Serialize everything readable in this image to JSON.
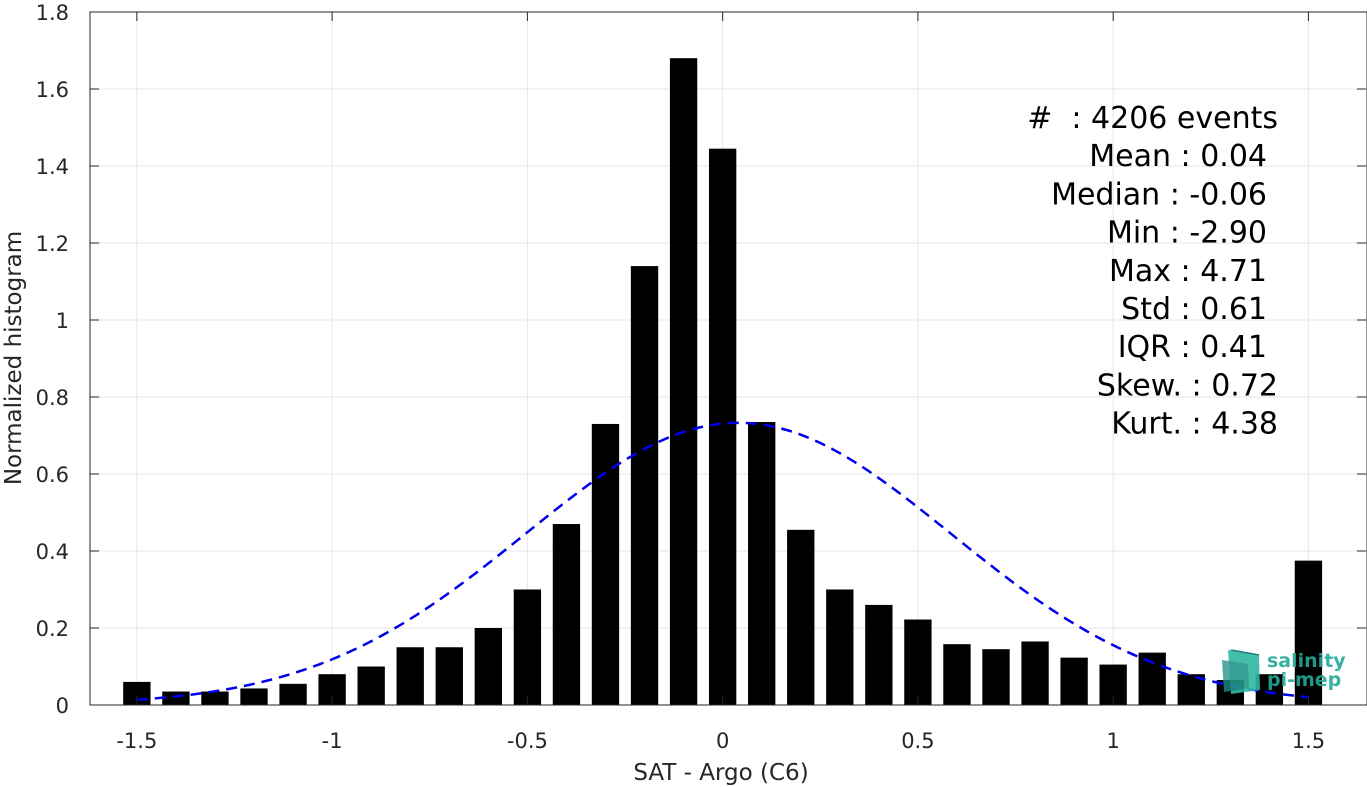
{
  "chart_data": {
    "type": "bar",
    "xlabel": "SAT - Argo (C6)",
    "ylabel": "Normalized histogram",
    "xlim": [
      -1.62,
      1.65
    ],
    "ylim": [
      0,
      1.8
    ],
    "xticks": [
      -1.5,
      -1,
      -0.5,
      0,
      0.5,
      1,
      1.5
    ],
    "xtick_labels": [
      "-1.5",
      "-1",
      "-0.5",
      "0",
      "0.5",
      "1",
      "1.5"
    ],
    "yticks": [
      0,
      0.2,
      0.4,
      0.6,
      0.8,
      1,
      1.2,
      1.4,
      1.6,
      1.8
    ],
    "ytick_labels": [
      "0",
      "0.2",
      "0.4",
      "0.6",
      "0.8",
      "1",
      "1.2",
      "1.4",
      "1.6",
      "1.8"
    ],
    "grid": true,
    "bar_width": 0.07,
    "bar_color": "#000000",
    "bins": [
      {
        "x": -1.5,
        "y": 0.06
      },
      {
        "x": -1.4,
        "y": 0.035
      },
      {
        "x": -1.3,
        "y": 0.035
      },
      {
        "x": -1.2,
        "y": 0.043
      },
      {
        "x": -1.1,
        "y": 0.055
      },
      {
        "x": -1.0,
        "y": 0.08
      },
      {
        "x": -0.9,
        "y": 0.1
      },
      {
        "x": -0.8,
        "y": 0.15
      },
      {
        "x": -0.7,
        "y": 0.15
      },
      {
        "x": -0.6,
        "y": 0.2
      },
      {
        "x": -0.5,
        "y": 0.3
      },
      {
        "x": -0.4,
        "y": 0.47
      },
      {
        "x": -0.3,
        "y": 0.73
      },
      {
        "x": -0.2,
        "y": 1.14
      },
      {
        "x": -0.1,
        "y": 1.68
      },
      {
        "x": 0.0,
        "y": 1.445
      },
      {
        "x": 0.1,
        "y": 0.735
      },
      {
        "x": 0.2,
        "y": 0.455
      },
      {
        "x": 0.3,
        "y": 0.3
      },
      {
        "x": 0.4,
        "y": 0.26
      },
      {
        "x": 0.5,
        "y": 0.222
      },
      {
        "x": 0.6,
        "y": 0.158
      },
      {
        "x": 0.7,
        "y": 0.145
      },
      {
        "x": 0.8,
        "y": 0.165
      },
      {
        "x": 0.9,
        "y": 0.123
      },
      {
        "x": 1.0,
        "y": 0.105
      },
      {
        "x": 1.1,
        "y": 0.136
      },
      {
        "x": 1.2,
        "y": 0.08
      },
      {
        "x": 1.3,
        "y": 0.065
      },
      {
        "x": 1.4,
        "y": 0.08
      },
      {
        "x": 1.5,
        "y": 0.375
      }
    ],
    "fit": {
      "type": "gaussian",
      "mean": 0.04,
      "std": 0.545,
      "peak": 0.733,
      "x_range": [
        -1.5,
        1.5
      ],
      "color": "#0000ee",
      "style": "dashed"
    },
    "annotations": [
      "#  : 4206 events",
      "Mean : 0.04",
      "Median : -0.06",
      "Min : -2.90",
      "Max : 4.71",
      "Std : 0.61",
      "IQR : 0.41",
      "Skew. : 0.72",
      "Kurt. : 4.38"
    ]
  },
  "logo": {
    "line1": "salinity",
    "line2": "pi-mep"
  }
}
